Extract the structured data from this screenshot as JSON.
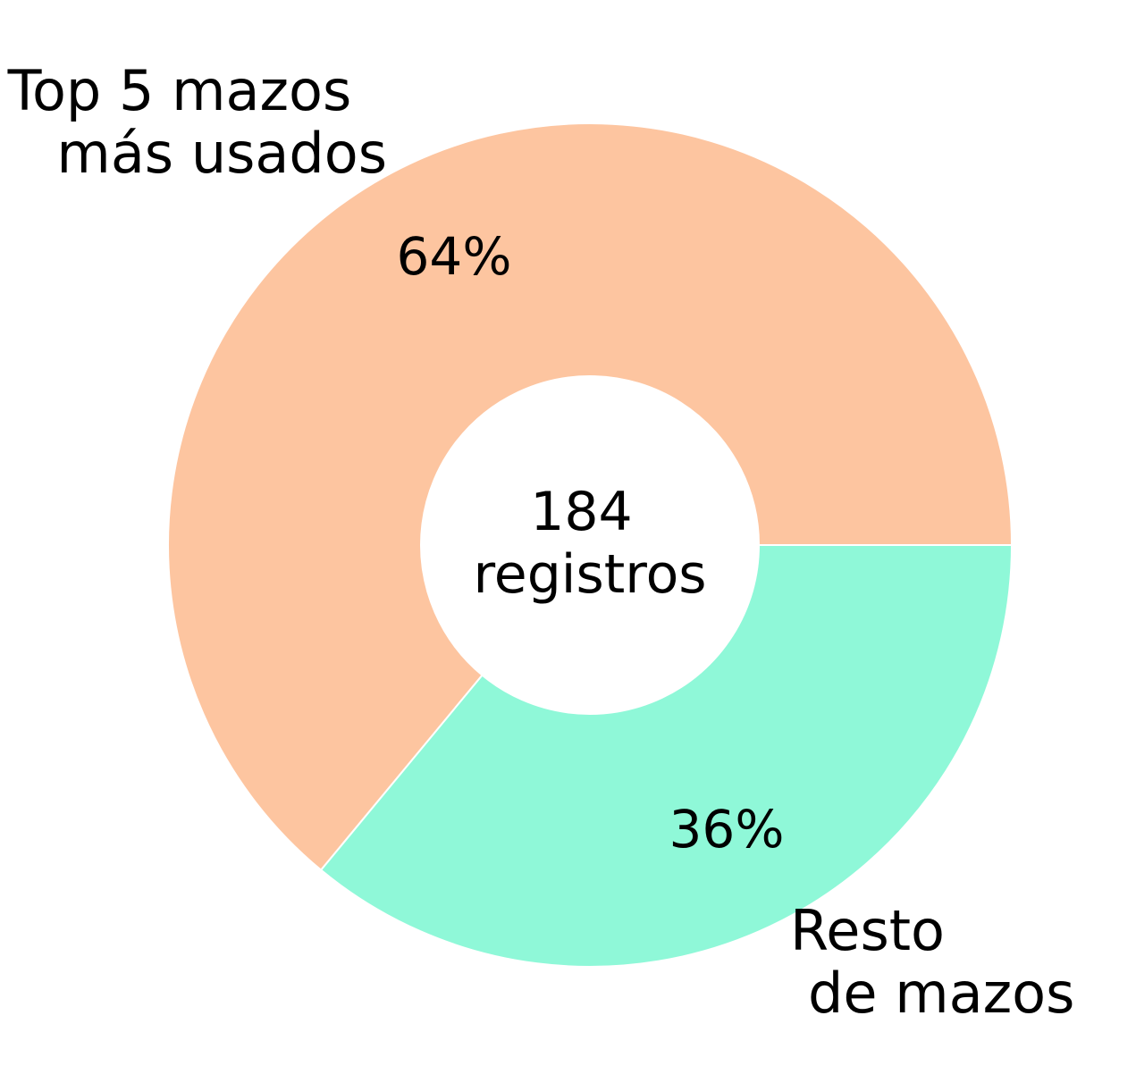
{
  "chart_data": {
    "type": "pie",
    "donut": true,
    "slices": [
      {
        "label_lines": [
          "Top 5 mazos",
          "más usados"
        ],
        "value": 64,
        "pct_label": "64%",
        "color": "#FDC5A0"
      },
      {
        "label_lines": [
          "Resto",
          "de mazos"
        ],
        "value": 36,
        "pct_label": "36%",
        "color": "#8FF8D8"
      }
    ],
    "center_text": {
      "line1": "184",
      "line2": "registros"
    },
    "slice_edge_color": "#ffffff"
  }
}
